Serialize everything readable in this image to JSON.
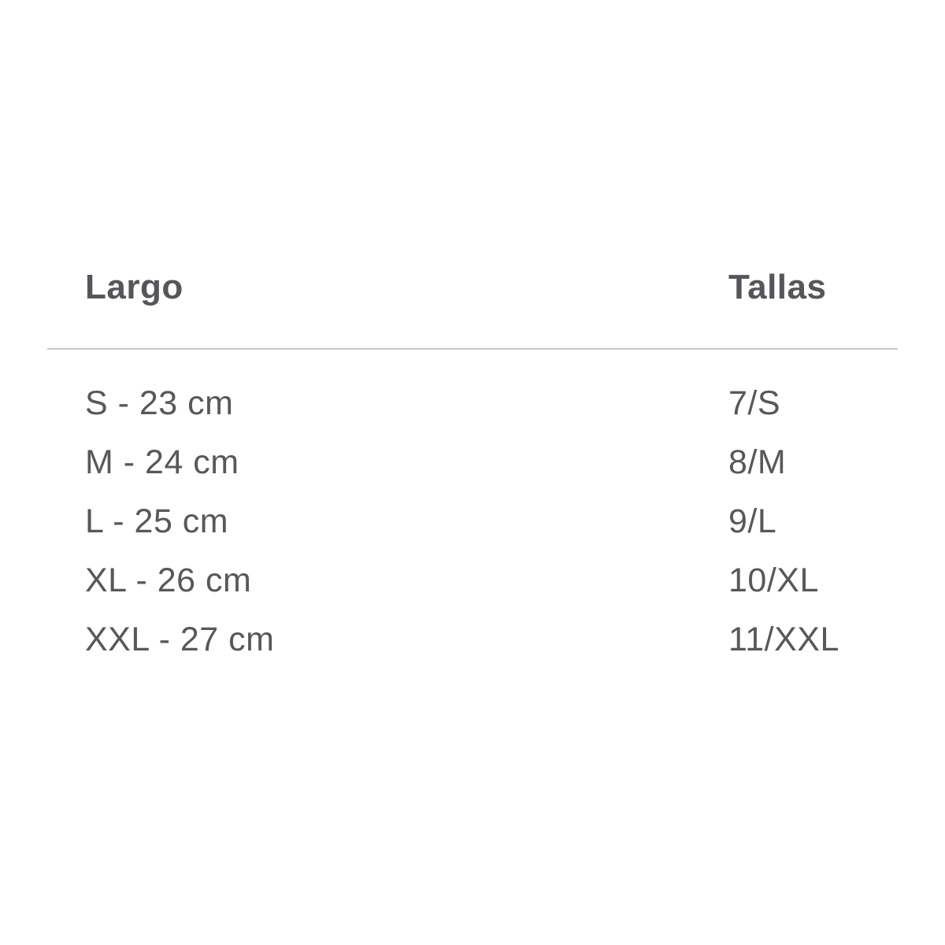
{
  "page": {
    "background": "#ffffff"
  },
  "size_chart": {
    "columns": [
      {
        "key": "largo",
        "label": "Largo"
      },
      {
        "key": "tallas",
        "label": "Tallas"
      }
    ],
    "rows": [
      {
        "largo": "S - 23 cm",
        "tallas": "7/S"
      },
      {
        "largo": "M - 24 cm",
        "tallas": "8/M"
      },
      {
        "largo": "L - 25 cm",
        "tallas": "9/L"
      },
      {
        "largo": "XL - 26 cm",
        "tallas": "10/XL"
      },
      {
        "largo": "XXL - 27 cm",
        "tallas": "11/XXL"
      }
    ],
    "colors": {
      "text": "#58585a",
      "divider": "#c8c8c8"
    }
  }
}
